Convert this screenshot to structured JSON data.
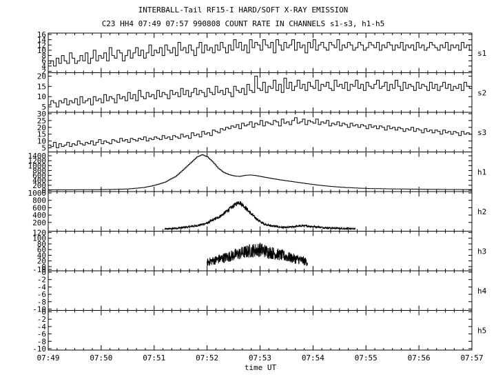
{
  "chart_data": {
    "type": "line",
    "title": "INTERBALL-Tail RF15-I HARD/SOFT X-RAY EMISSION",
    "subtitle": "C23 HH4 07:49 07:57 990808  COUNT RATE IN CHANNELS s1-s3, h1-h5",
    "xlabel": "time UT",
    "x_ticks": [
      "07:49",
      "07:50",
      "07:51",
      "07:52",
      "07:53",
      "07:54",
      "07:55",
      "07:56",
      "07:57"
    ],
    "x_range_minutes": [
      0,
      8
    ],
    "grid": false,
    "panels": [
      {
        "name": "s1",
        "ylim": [
          2,
          16
        ],
        "y_ticks": [
          "2",
          "4",
          "6",
          "8",
          "10",
          "12",
          "14",
          "16"
        ],
        "style": "step",
        "x_start_minute": 0,
        "x_step_minute": 0.05,
        "values": [
          5,
          6,
          4,
          7,
          5,
          8,
          6,
          5,
          9,
          7,
          5,
          6,
          8,
          6,
          9,
          5,
          7,
          10,
          6,
          8,
          7,
          9,
          6,
          11,
          8,
          7,
          10,
          9,
          6,
          8,
          10,
          7,
          9,
          11,
          8,
          10,
          7,
          9,
          12,
          8,
          10,
          9,
          11,
          8,
          12,
          10,
          9,
          11,
          8,
          13,
          10,
          11,
          9,
          12,
          10,
          8,
          11,
          13,
          9,
          12,
          10,
          11,
          9,
          12,
          10,
          13,
          11,
          9,
          12,
          10,
          14,
          11,
          13,
          10,
          12,
          9,
          14,
          11,
          13,
          12,
          10,
          14,
          12,
          11,
          13,
          9,
          14,
          12,
          10,
          13,
          11,
          12,
          14,
          10,
          13,
          11,
          12,
          9,
          13,
          11,
          14,
          10,
          12,
          13,
          11,
          10,
          13,
          12,
          11,
          14,
          10,
          12,
          11,
          13,
          12,
          10,
          11,
          13,
          12,
          10,
          11,
          13,
          12,
          11,
          13,
          10,
          12,
          11,
          13,
          12,
          10,
          12,
          11,
          13,
          10,
          12,
          11,
          12,
          10,
          13,
          11,
          12,
          10,
          11,
          13,
          12,
          11,
          10,
          12,
          11,
          13,
          10,
          12,
          11,
          12,
          10,
          13,
          11,
          12,
          10
        ]
      },
      {
        "name": "s2",
        "ylim": [
          3,
          21
        ],
        "y_ticks": [
          "5",
          "10",
          "15",
          "20"
        ],
        "style": "step",
        "x_start_minute": 0,
        "x_step_minute": 0.05,
        "values": [
          6,
          8,
          7,
          5,
          8,
          7,
          9,
          6,
          8,
          7,
          9,
          6,
          10,
          7,
          8,
          9,
          6,
          10,
          8,
          9,
          7,
          11,
          8,
          10,
          9,
          7,
          11,
          9,
          10,
          8,
          12,
          9,
          11,
          8,
          13,
          10,
          9,
          12,
          10,
          11,
          9,
          13,
          10,
          12,
          11,
          9,
          13,
          11,
          12,
          10,
          14,
          11,
          13,
          10,
          12,
          14,
          11,
          13,
          12,
          10,
          14,
          12,
          11,
          15,
          12,
          13,
          11,
          14,
          12,
          10,
          15,
          13,
          12,
          14,
          11,
          16,
          13,
          12,
          20,
          14,
          13,
          17,
          12,
          15,
          14,
          18,
          13,
          16,
          12,
          19,
          14,
          17,
          13,
          15,
          18,
          14,
          16,
          13,
          17,
          15,
          14,
          18,
          13,
          16,
          15,
          17,
          14,
          13,
          18,
          15,
          16,
          14,
          17,
          13,
          16,
          15,
          18,
          14,
          16,
          13,
          17,
          15,
          14,
          16,
          18,
          14,
          15,
          17,
          13,
          16,
          14,
          18,
          15,
          13,
          17,
          14,
          16,
          15,
          13,
          17,
          14,
          16,
          15,
          13,
          17,
          14,
          16,
          13,
          15,
          17,
          14,
          16,
          13,
          15,
          14,
          16,
          13,
          17,
          15,
          14
        ]
      },
      {
        "name": "s3",
        "ylim": [
          3,
          30
        ],
        "y_ticks": [
          "5",
          "10",
          "15",
          "20",
          "25",
          "30"
        ],
        "style": "step",
        "x_start_minute": 0,
        "x_step_minute": 0.05,
        "values": [
          7,
          6,
          9,
          5,
          8,
          6,
          7,
          9,
          6,
          8,
          7,
          10,
          8,
          7,
          9,
          8,
          10,
          7,
          9,
          11,
          8,
          10,
          9,
          8,
          11,
          10,
          9,
          12,
          10,
          11,
          9,
          12,
          11,
          10,
          12,
          11,
          13,
          10,
          12,
          11,
          13,
          12,
          11,
          14,
          12,
          13,
          11,
          14,
          13,
          12,
          15,
          13,
          14,
          12,
          16,
          14,
          15,
          13,
          17,
          15,
          16,
          14,
          18,
          17,
          16,
          19,
          18,
          20,
          19,
          21,
          20,
          22,
          19,
          23,
          21,
          22,
          24,
          20,
          23,
          22,
          25,
          21,
          24,
          23,
          22,
          25,
          24,
          21,
          26,
          23,
          24,
          22,
          25,
          27,
          23,
          24,
          26,
          22,
          25,
          24,
          23,
          26,
          22,
          24,
          23,
          25,
          21,
          23,
          22,
          24,
          21,
          23,
          22,
          20,
          23,
          21,
          22,
          20,
          22,
          21,
          19,
          22,
          20,
          21,
          19,
          21,
          20,
          18,
          21,
          19,
          20,
          18,
          20,
          19,
          17,
          19,
          18,
          20,
          17,
          19,
          18,
          16,
          19,
          17,
          18,
          16,
          18,
          17,
          15,
          18,
          16,
          17,
          15,
          17,
          16,
          14,
          17,
          15,
          16,
          15
        ]
      },
      {
        "name": "h1",
        "ylim": [
          0,
          1500
        ],
        "y_ticks": [
          "0",
          "200",
          "400",
          "600",
          "800",
          "1000",
          "1200",
          "1400"
        ],
        "style": "step",
        "x": [
          0,
          0.8,
          1.2,
          1.5,
          1.8,
          2.0,
          2.1,
          2.2,
          2.3,
          2.4,
          2.5,
          2.6,
          2.7,
          2.8,
          2.9,
          3.0,
          3.1,
          3.2,
          3.3,
          3.4,
          3.5,
          3.6,
          3.7,
          3.8,
          3.9,
          4.0,
          4.2,
          4.4,
          4.6,
          4.8,
          5.0,
          5.2,
          5.4,
          5.6,
          5.8,
          6.0,
          6.4,
          6.8,
          7.2,
          7.6,
          8.0
        ],
        "values": [
          15,
          20,
          30,
          50,
          110,
          200,
          260,
          330,
          450,
          560,
          750,
          950,
          1150,
          1350,
          1450,
          1350,
          1150,
          900,
          730,
          640,
          580,
          560,
          600,
          620,
          600,
          560,
          480,
          410,
          350,
          290,
          230,
          180,
          140,
          110,
          90,
          70,
          55,
          45,
          35,
          28,
          25
        ]
      },
      {
        "name": "h2",
        "ylim": [
          0,
          1000
        ],
        "y_ticks": [
          "200",
          "400",
          "600",
          "800",
          "1000"
        ],
        "style": "noisy",
        "x": [
          2.2,
          2.4,
          2.6,
          2.8,
          3.0,
          3.1,
          3.2,
          3.3,
          3.4,
          3.5,
          3.6,
          3.7,
          3.8,
          3.9,
          4.0,
          4.1,
          4.2,
          4.3,
          4.4,
          4.5,
          4.6,
          4.8,
          5.0,
          5.2,
          5.4,
          5.6,
          5.8
        ],
        "values": [
          20,
          40,
          70,
          110,
          180,
          260,
          330,
          420,
          540,
          650,
          760,
          640,
          480,
          340,
          220,
          150,
          110,
          90,
          70,
          60,
          80,
          110,
          90,
          60,
          45,
          35,
          25
        ],
        "noise": 60
      },
      {
        "name": "h3",
        "ylim": [
          -10,
          120
        ],
        "y_ticks": [
          "-10",
          "0",
          "20",
          "40",
          "60",
          "80",
          "100",
          "120"
        ],
        "style": "noisy",
        "x": [
          3.0,
          3.2,
          3.4,
          3.6,
          3.8,
          4.0,
          4.2,
          4.4,
          4.6,
          4.8,
          4.9
        ],
        "values": [
          15,
          25,
          35,
          45,
          55,
          60,
          50,
          40,
          30,
          22,
          15
        ],
        "noise": 30
      },
      {
        "name": "h4",
        "ylim": [
          -10,
          0
        ],
        "y_ticks": [
          "-10",
          "-8",
          "-6",
          "-4",
          "-2",
          "0"
        ],
        "style": "empty",
        "values": []
      },
      {
        "name": "h5",
        "ylim": [
          -10,
          0
        ],
        "y_ticks": [
          "-10",
          "-8",
          "-6",
          "-4",
          "-2",
          "0"
        ],
        "style": "empty",
        "values": []
      }
    ]
  }
}
